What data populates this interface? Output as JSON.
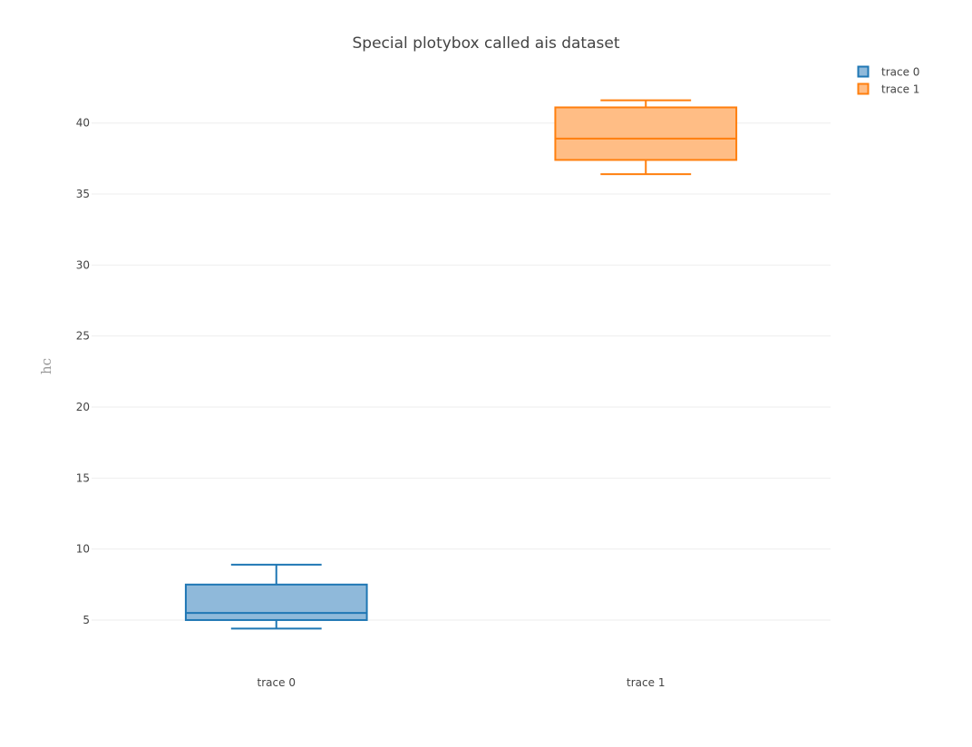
{
  "chart_data": {
    "type": "box",
    "title": "Special plotybox called ais dataset",
    "xlabel": "",
    "ylabel": "hc",
    "ylim": [
      2.7,
      43.3
    ],
    "yticks": [
      5,
      10,
      15,
      20,
      25,
      30,
      35,
      40
    ],
    "grid": true,
    "legend_position": "top-right",
    "categories": [
      "trace 0",
      "trace 1"
    ],
    "series": [
      {
        "name": "trace 0",
        "color": "#1f77b4",
        "fill": "#8fb9da",
        "min": 4.4,
        "q1": 5.0,
        "median": 5.5,
        "q3": 7.5,
        "max": 8.9
      },
      {
        "name": "trace 1",
        "color": "#ff7f0e",
        "fill": "#ffbd85",
        "min": 36.4,
        "q1": 37.4,
        "median": 38.9,
        "q3": 41.1,
        "max": 41.6
      }
    ]
  }
}
